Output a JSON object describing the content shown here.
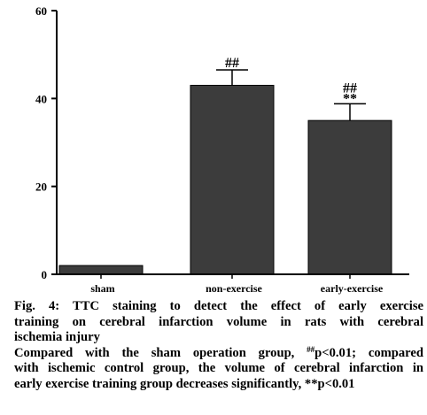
{
  "chart_data": {
    "type": "bar",
    "categories": [
      "sham",
      "non-exercise",
      "early-exercise"
    ],
    "values": [
      2,
      43,
      35
    ],
    "errors": [
      0,
      3.5,
      3.8
    ],
    "annotations": [
      [],
      [
        "##"
      ],
      [
        "##",
        "**"
      ]
    ],
    "ylim": [
      0,
      60
    ],
    "yticks": [
      "0",
      "20",
      "40",
      "60"
    ],
    "ytick_values": [
      0,
      20,
      40,
      60
    ],
    "bar_color": "#3c3c3c",
    "title": "",
    "xlabel": "",
    "ylabel": "",
    "grid": false
  },
  "caption": {
    "fig_line1": "Fig. 4: TTC staining to detect the effect of early exercise",
    "fig_line2": "training on cerebral infarction volume in rats with cerebral",
    "fig_line3": "ischemia injury",
    "note_line1_pre": "Compared with the sham operation group, ",
    "note_line1_sup": "##",
    "note_line1_post": "p<0.01; compared",
    "note_line2": "with ischemic control group, the volume of cerebral infarction in",
    "note_line3": "early exercise training group decreases significantly, **p<0.01"
  }
}
